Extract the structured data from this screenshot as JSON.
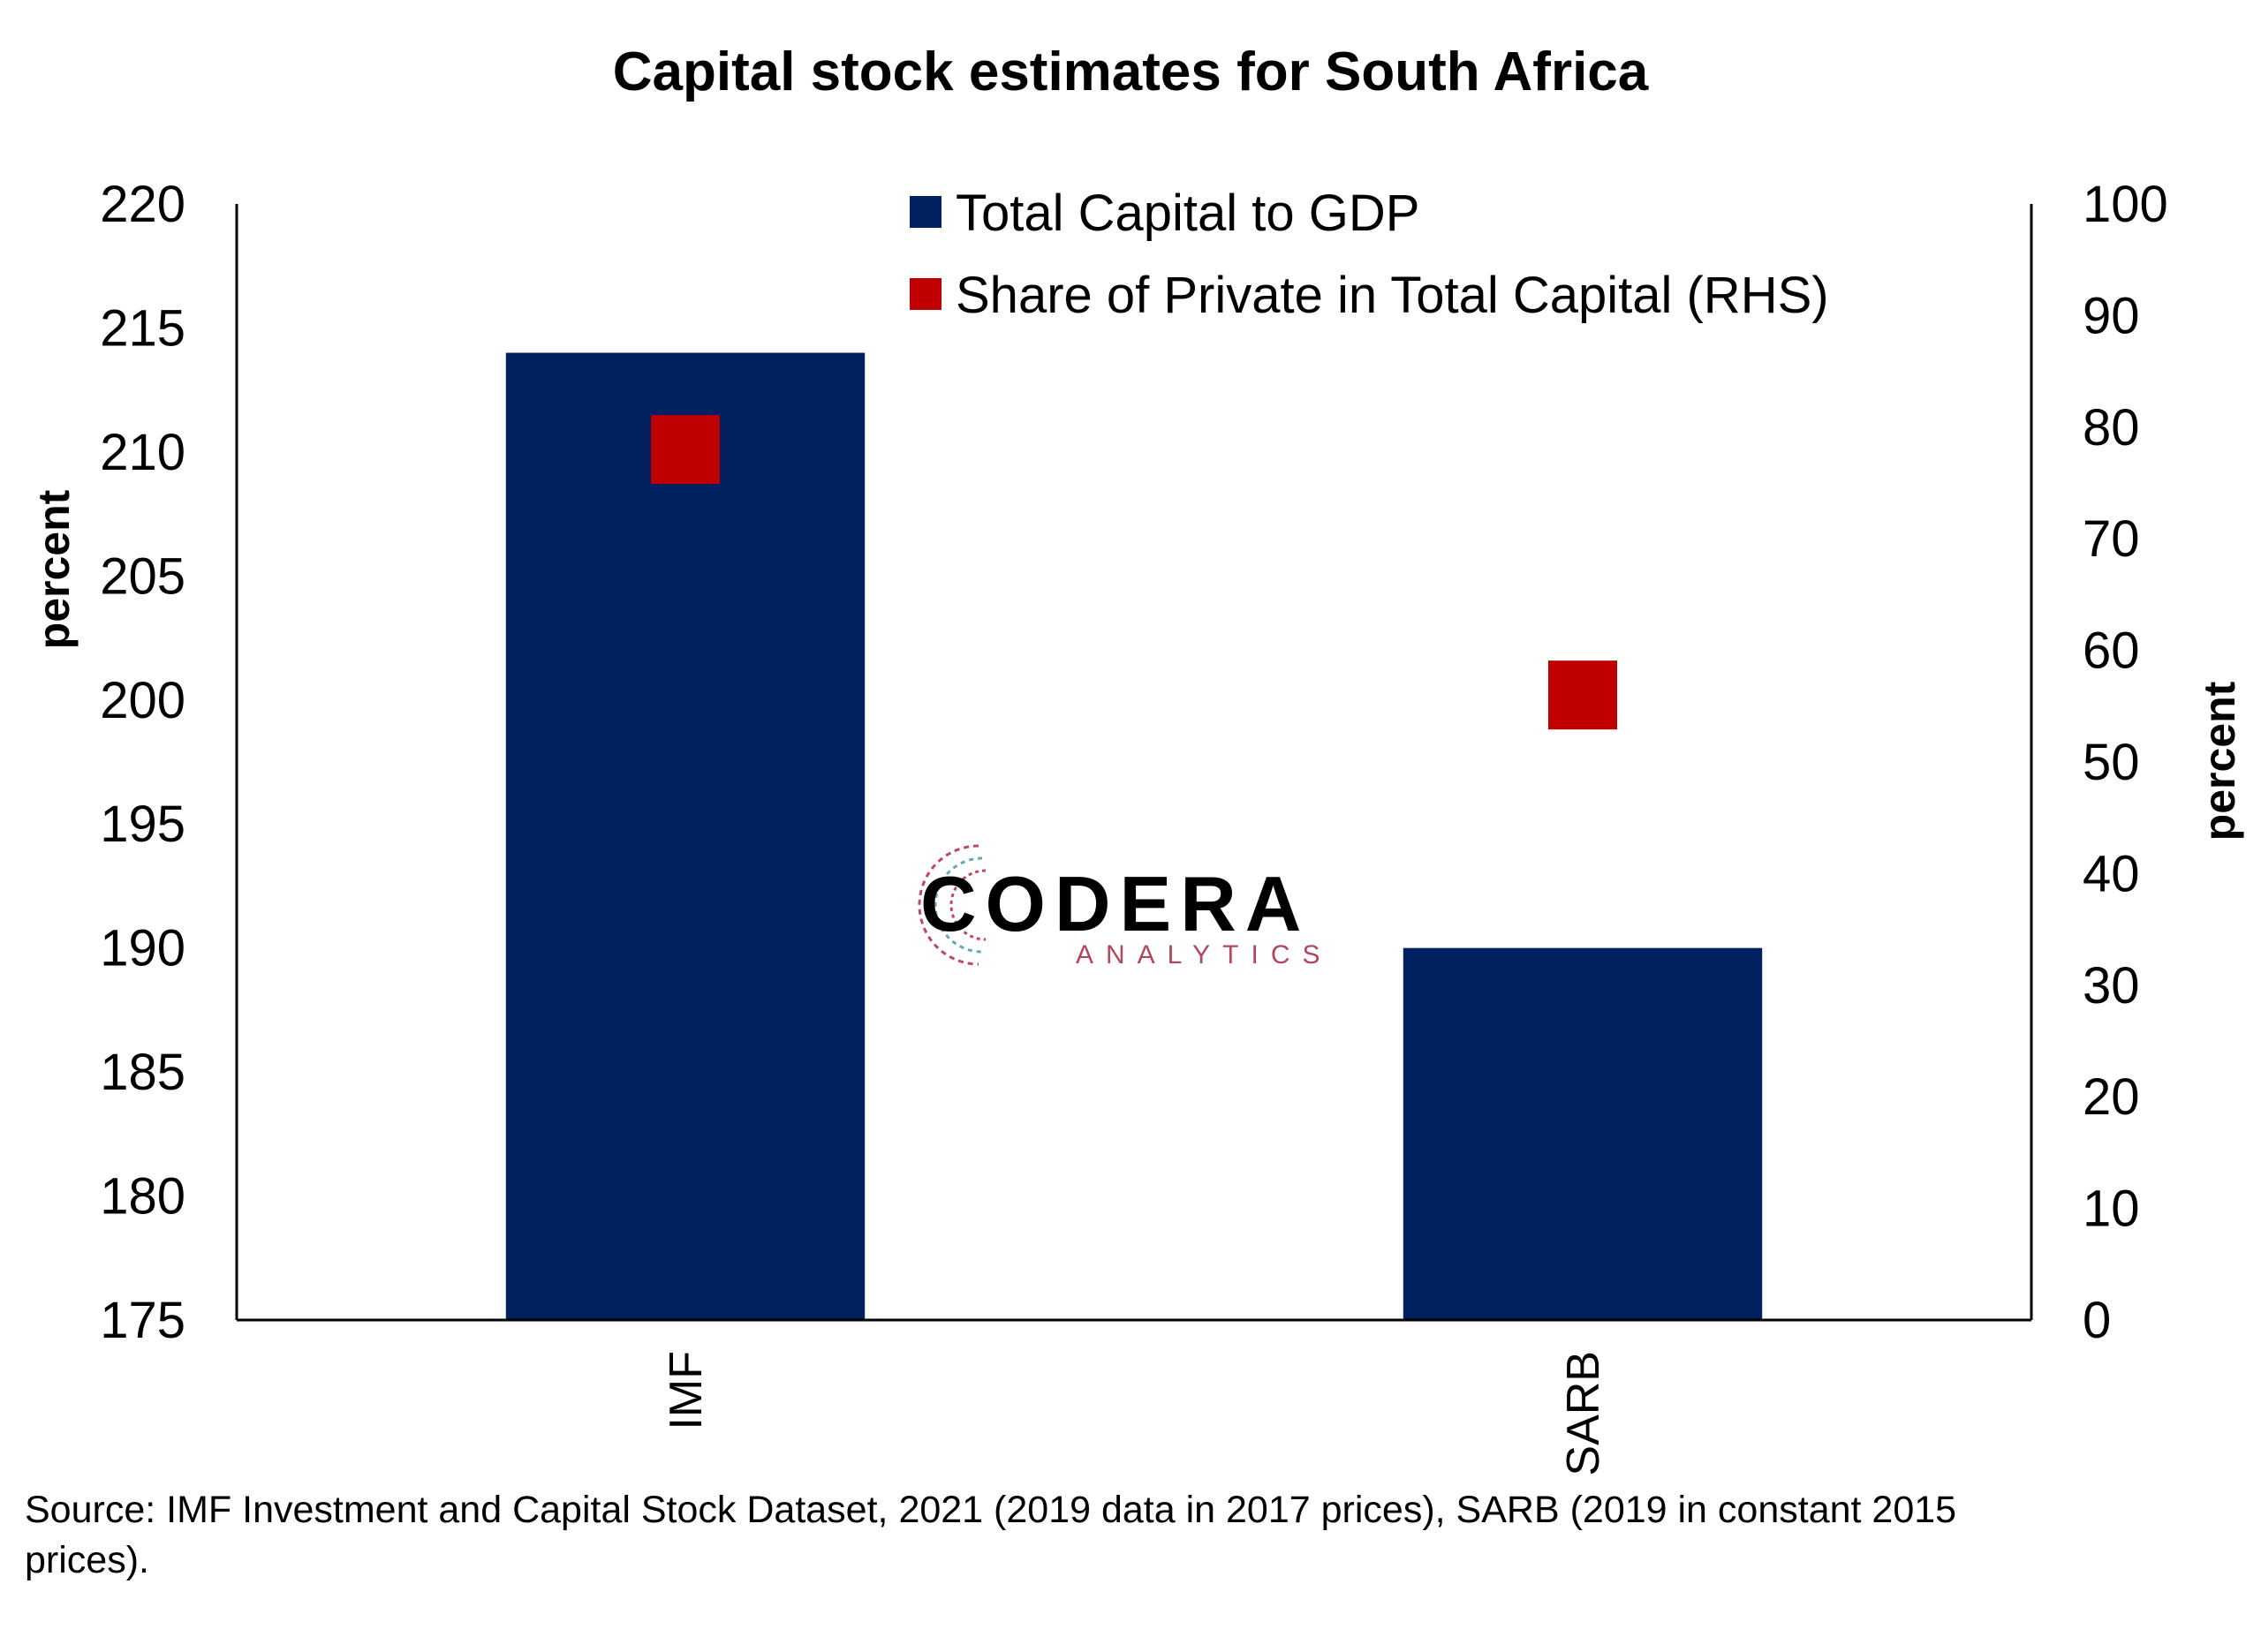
{
  "chart_data": {
    "type": "bar",
    "title": "Capital stock estimates for South Africa",
    "categories": [
      "IMF",
      "SARB"
    ],
    "series": [
      {
        "name": "Total Capital to GDP",
        "kind": "bar",
        "axis": "left",
        "color": "#002060",
        "values": [
          214,
          190
        ]
      },
      {
        "name": "Share of Private in Total Capital (RHS)",
        "kind": "marker",
        "axis": "right",
        "color": "#c00000",
        "values": [
          78,
          56
        ]
      }
    ],
    "y_left": {
      "label": "percent",
      "ylim": [
        175,
        220
      ],
      "ticks": [
        "175",
        "180",
        "185",
        "190",
        "195",
        "200",
        "205",
        "210",
        "215",
        "220"
      ]
    },
    "y_right": {
      "label": "percent",
      "ylim": [
        0,
        100
      ],
      "ticks": [
        "0",
        "10",
        "20",
        "30",
        "40",
        "50",
        "60",
        "70",
        "80",
        "90",
        "100"
      ]
    },
    "legend_position": "top-center",
    "grid": false
  },
  "source_note": "Source: IMF Investment and Capital Stock Dataset, 2021 (2019 data in 2017 prices), SARB (2019 in constant 2015 prices).",
  "logo": {
    "name": "CODERA",
    "tagline": "ANALYTICS"
  }
}
